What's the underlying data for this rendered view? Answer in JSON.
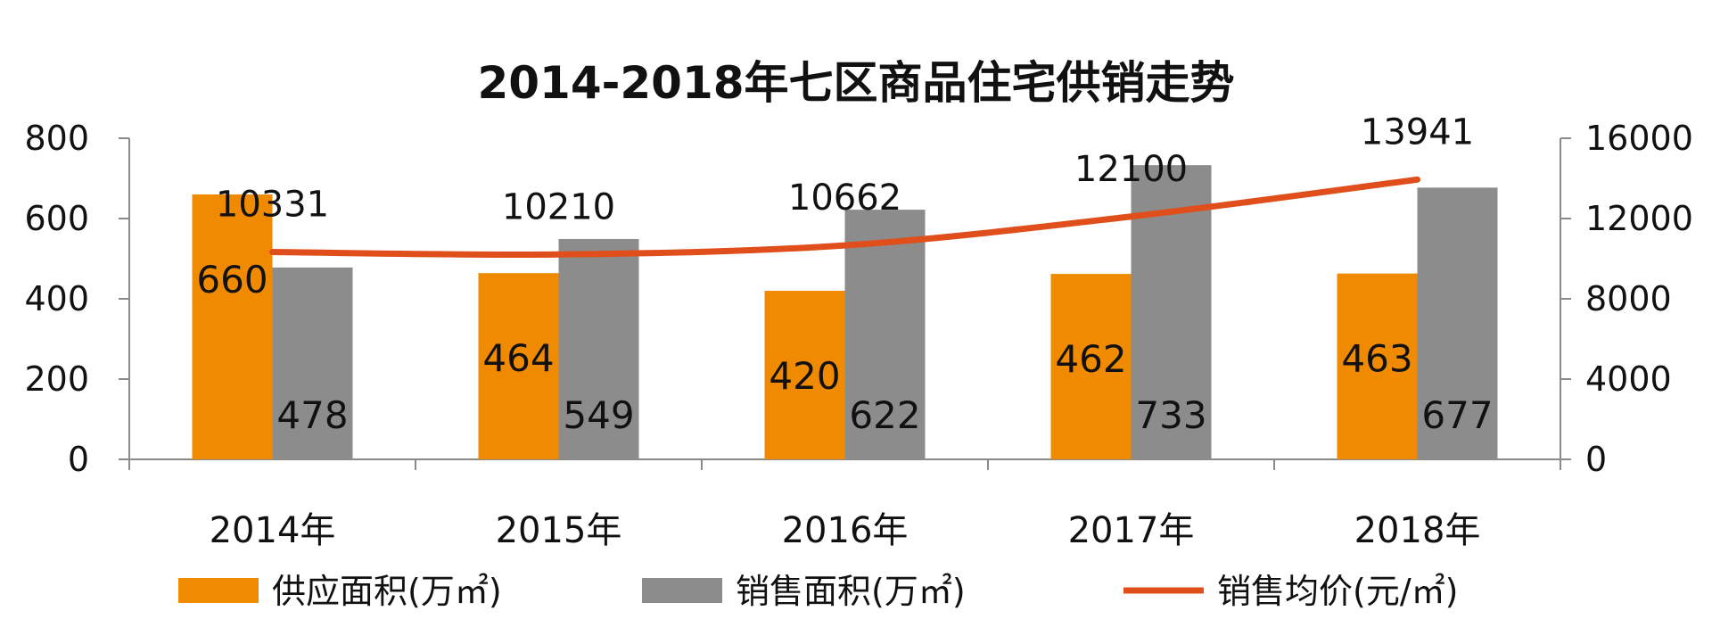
{
  "chart_data": {
    "type": "bar",
    "title": "2014-2018年七区商品住宅供销走势",
    "categories": [
      "2014年",
      "2015年",
      "2016年",
      "2017年",
      "2018年"
    ],
    "ylim": [
      0,
      800
    ],
    "y2lim": [
      0,
      16000
    ],
    "yticks": [
      "0",
      "200",
      "400",
      "600",
      "800"
    ],
    "y2ticks": [
      "0",
      "4000",
      "8000",
      "12000",
      "16000"
    ],
    "series": [
      {
        "name": "供应面积(万㎡)",
        "type": "bar",
        "axis": "left",
        "color": "#F08A00",
        "values": [
          660,
          464,
          420,
          462,
          463
        ],
        "labels": [
          "660",
          "464",
          "420",
          "462",
          "463"
        ]
      },
      {
        "name": "销售面积(万㎡)",
        "type": "bar",
        "axis": "left",
        "color": "#8C8C8C",
        "values": [
          478,
          549,
          622,
          733,
          677
        ],
        "labels": [
          "478",
          "549",
          "622",
          "733",
          "677"
        ]
      },
      {
        "name": "销售均价(元/㎡)",
        "type": "line",
        "axis": "right",
        "color": "#E04E1B",
        "values": [
          10331,
          10210,
          10662,
          12100,
          13941
        ],
        "labels": [
          "10331",
          "10210",
          "10662",
          "12100",
          "13941"
        ]
      }
    ],
    "legend": "bottom",
    "grid": false
  }
}
